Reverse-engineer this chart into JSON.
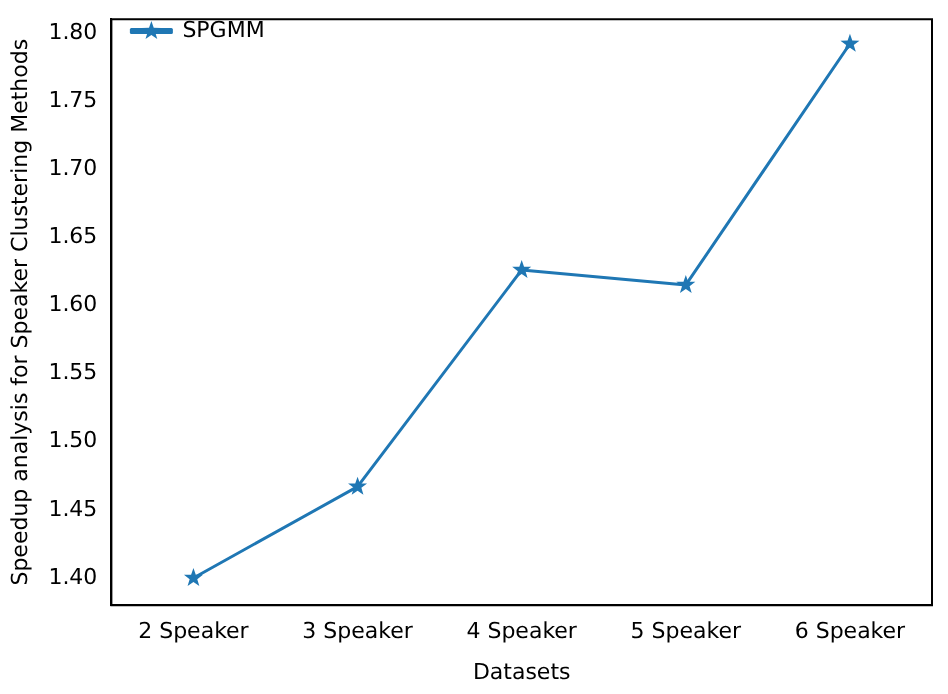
{
  "chart_data": {
    "type": "line",
    "xlabel": "Datasets",
    "ylabel": "Speedup analysis for Speaker Clustering Methods",
    "categories": [
      "2 Speaker",
      "3 Speaker",
      "4 Speaker",
      "5 Speaker",
      "6 Speaker"
    ],
    "series": [
      {
        "name": "SPGMM",
        "color": "#1f77b4",
        "values": [
          1.4,
          1.467,
          1.626,
          1.615,
          1.792
        ]
      }
    ],
    "ylim": [
      1.38,
      1.81
    ],
    "yticks": [
      {
        "value": 1.4,
        "label": "1.40"
      },
      {
        "value": 1.45,
        "label": "1.45"
      },
      {
        "value": 1.5,
        "label": "1.50"
      },
      {
        "value": 1.55,
        "label": "1.55"
      },
      {
        "value": 1.6,
        "label": "1.60"
      },
      {
        "value": 1.65,
        "label": "1.65"
      },
      {
        "value": 1.7,
        "label": "1.70"
      },
      {
        "value": 1.75,
        "label": "1.75"
      },
      {
        "value": 1.8,
        "label": "1.80"
      }
    ],
    "legend": "top left",
    "marker": "star",
    "line_style": "solid"
  }
}
